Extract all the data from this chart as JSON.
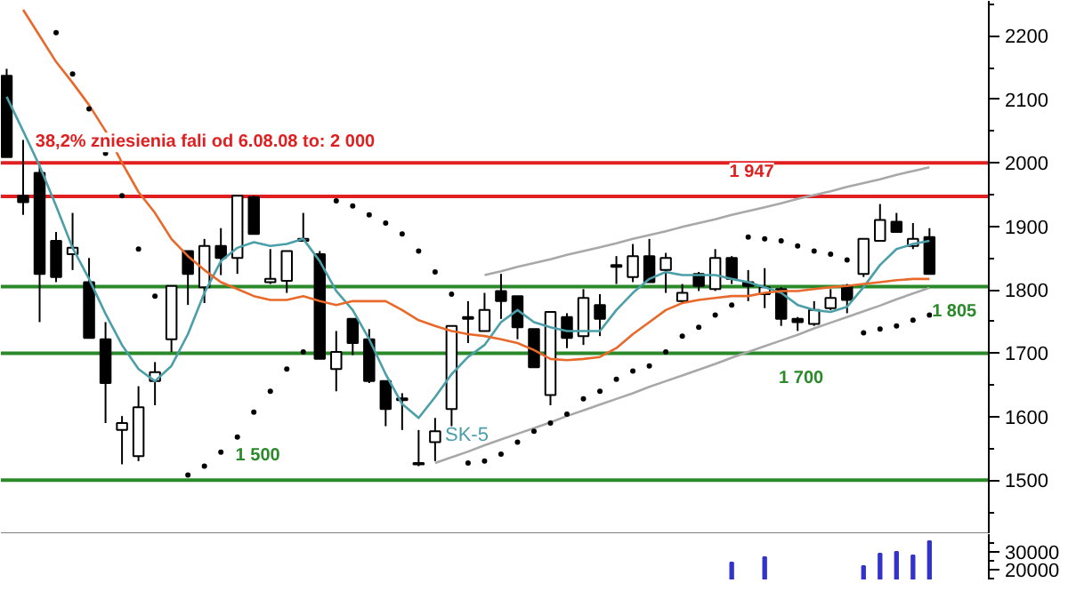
{
  "chart_data": [
    {
      "type": "candlestick",
      "color": "#000000",
      "categories": [
        null,
        null,
        null,
        null,
        null,
        null,
        null,
        null,
        null,
        null,
        null,
        null,
        null,
        null,
        null,
        null,
        null,
        null,
        null,
        null,
        null,
        null,
        null,
        null,
        null,
        null,
        null,
        null,
        null,
        null,
        null,
        null,
        null,
        null,
        null,
        null,
        null,
        null,
        null,
        null,
        null,
        null,
        null,
        null,
        null,
        null,
        null,
        null,
        null,
        null,
        null,
        null,
        null,
        null,
        null,
        null,
        null
      ],
      "ohlc": [
        [
          2137,
          2148,
          2009,
          2009
        ],
        [
          1948,
          2036,
          1918,
          1938
        ],
        [
          1984,
          1995,
          1749,
          1825
        ],
        [
          1877,
          1891,
          1812,
          1820
        ],
        [
          1856,
          1921,
          1831,
          1866
        ],
        [
          1812,
          1850,
          1724,
          1724
        ],
        [
          1722,
          1749,
          1590,
          1653
        ],
        [
          1579,
          1601,
          1525,
          1590
        ],
        [
          1538,
          1648,
          1530,
          1615
        ],
        [
          1656,
          1686,
          1618,
          1670
        ],
        [
          1722,
          1806,
          1702,
          1806
        ],
        [
          1861,
          1861,
          1776,
          1825
        ],
        [
          1804,
          1880,
          1779,
          1869
        ],
        [
          1869,
          1897,
          1823,
          1850
        ],
        [
          1850,
          1948,
          1825,
          1948
        ],
        [
          1946,
          1948,
          1888,
          1888
        ],
        [
          1812,
          1864,
          1809,
          1817
        ],
        [
          1814,
          1861,
          1795,
          1861
        ],
        [
          1877,
          1921,
          1877,
          1880
        ],
        [
          1856,
          1861,
          1691,
          1691
        ],
        [
          1675,
          1735,
          1640,
          1702
        ],
        [
          1754,
          1754,
          1697,
          1716
        ],
        [
          1722,
          1738,
          1653,
          1656
        ],
        [
          1656,
          1656,
          1585,
          1612
        ],
        [
          1626,
          1637,
          1579,
          1629
        ],
        [
          1527,
          1579,
          1522,
          1525
        ],
        [
          1560,
          1598,
          1530,
          1577
        ],
        [
          1612,
          1743,
          1585,
          1743
        ],
        [
          1754,
          1782,
          1716,
          1757
        ],
        [
          1735,
          1795,
          1735,
          1768
        ],
        [
          1798,
          1825,
          1754,
          1782
        ],
        [
          1790,
          1790,
          1722,
          1741
        ],
        [
          1738,
          1738,
          1678,
          1678
        ],
        [
          1634,
          1765,
          1618,
          1765
        ],
        [
          1757,
          1763,
          1708,
          1724
        ],
        [
          1727,
          1801,
          1713,
          1787
        ],
        [
          1776,
          1793,
          1727,
          1754
        ],
        [
          1836,
          1853,
          1809,
          1839
        ],
        [
          1820,
          1872,
          1812,
          1853
        ],
        [
          1853,
          1880,
          1812,
          1812
        ],
        [
          1831,
          1858,
          1795,
          1850
        ],
        [
          1782,
          1809,
          1779,
          1795
        ],
        [
          1825,
          1828,
          1798,
          1806
        ],
        [
          1801,
          1864,
          1798,
          1850
        ],
        [
          1850,
          1853,
          1809,
          1817
        ],
        [
          1812,
          1831,
          1782,
          1806
        ],
        [
          1793,
          1834,
          1771,
          1804
        ],
        [
          1801,
          1804,
          1743,
          1754
        ],
        [
          1754,
          1757,
          1735,
          1749
        ],
        [
          1746,
          1782,
          1743,
          1768
        ],
        [
          1771,
          1801,
          1768,
          1787
        ],
        [
          1806,
          1809,
          1763,
          1784
        ],
        [
          1825,
          1880,
          1820,
          1880
        ],
        [
          1877,
          1935,
          1877,
          1910
        ],
        [
          1907,
          1921,
          1891,
          1891
        ],
        [
          1869,
          1905,
          1864,
          1880
        ],
        [
          1883,
          1897,
          1825,
          1825
        ]
      ],
      "series": [
        {
          "type": "line",
          "name": "SK-5",
          "color": "#4a9fa8",
          "values": [
            2104,
            2050,
            1995,
            1932,
            1866,
            1817,
            1762,
            1713,
            1675,
            1656,
            1680,
            1730,
            1795,
            1845,
            1866,
            1875,
            1869,
            1872,
            1880,
            1845,
            1798,
            1768,
            1722,
            1667,
            1620,
            1598,
            1631,
            1667,
            1694,
            1713,
            1749,
            1768,
            1749,
            1741,
            1735,
            1735,
            1735,
            1768,
            1795,
            1817,
            1828,
            1823,
            1823,
            1823,
            1817,
            1812,
            1804,
            1795,
            1776,
            1768,
            1765,
            1773,
            1804,
            1839,
            1864,
            1872,
            1877
          ]
        },
        {
          "type": "line",
          "color": "#e8692a",
          "values": [
            null,
            2241,
            2200,
            2159,
            2126,
            2091,
            2050,
            2000,
            1954,
            1921,
            1880,
            1853,
            1831,
            1812,
            1801,
            1790,
            1784,
            1784,
            1790,
            1782,
            1776,
            1782,
            1782,
            1782,
            1768,
            1752,
            1743,
            1735,
            1730,
            1727,
            1722,
            1716,
            1705,
            1691,
            1689,
            1691,
            1694,
            1708,
            1730,
            1749,
            1768,
            1779,
            1784,
            1787,
            1790,
            1790,
            1795,
            1798,
            1798,
            1801,
            1804,
            1806,
            1809,
            1812,
            1815,
            1817,
            1817
          ]
        },
        {
          "type": "scatter",
          "marker": "circle",
          "color": "#000000",
          "values": [
            null,
            null,
            null,
            2205,
            2140,
            2085,
            2015,
            1948,
            1864,
            1790,
            null,
            1508,
            1522,
            1544,
            1568,
            1607,
            1640,
            1675,
            1702,
            null,
            1940,
            1932,
            1918,
            1905,
            1888,
            1861,
            1828,
            1793,
            1527,
            1530,
            1541,
            1560,
            1577,
            1590,
            1604,
            1628,
            1640,
            1659,
            1672,
            1680,
            1702,
            1727,
            1741,
            1760,
            1776,
            1883,
            1880,
            1877,
            1869,
            1861,
            1856,
            1847,
            1732,
            1738,
            1743,
            1752,
            1760
          ]
        },
        {
          "type": "line",
          "color": "#a8a8a8",
          "values": [
            null,
            null,
            null,
            null,
            null,
            null,
            null,
            null,
            null,
            null,
            null,
            null,
            null,
            null,
            null,
            null,
            null,
            null,
            null,
            null,
            null,
            null,
            null,
            null,
            null,
            null,
            1527,
            1536,
            1545,
            1555,
            1564,
            1573,
            1582,
            1591,
            1601,
            1610,
            1619,
            1628,
            1637,
            1647,
            1656,
            1665,
            1674,
            1683,
            1693,
            1702,
            1711,
            1720,
            1729,
            1739,
            1748,
            1757,
            1766,
            1775,
            1785,
            1794,
            1803
          ]
        },
        {
          "type": "line",
          "color": "#a8a8a8",
          "values": [
            null,
            null,
            null,
            null,
            null,
            null,
            null,
            null,
            null,
            null,
            null,
            null,
            null,
            null,
            null,
            null,
            null,
            null,
            null,
            null,
            null,
            null,
            null,
            null,
            null,
            null,
            null,
            null,
            null,
            1823,
            1829,
            1836,
            1842,
            1848,
            1855,
            1861,
            1867,
            1873,
            1880,
            1886,
            1892,
            1899,
            1905,
            1911,
            1918,
            1924,
            1930,
            1936,
            1943,
            1949,
            1955,
            1962,
            1968,
            1974,
            1981,
            1987,
            1993
          ]
        }
      ],
      "ref_lines": [
        {
          "axis": "y",
          "value": 2000,
          "label": "38,2%  zniesienia fali od 6.08.08 to: 2 000",
          "color": "#e02020"
        },
        {
          "axis": "y",
          "value": 1947,
          "label": "1 947",
          "color": "#e02020"
        },
        {
          "axis": "y",
          "value": 1500,
          "label": "1 500",
          "color": "#2a8a2a"
        },
        {
          "axis": "y",
          "value": 1700,
          "label": "1 700",
          "color": "#2a8a2a"
        },
        {
          "axis": "y",
          "value": 1805,
          "label": "1 805",
          "color": "#2a8a2a"
        }
      ],
      "ylim": [
        1415,
        2255
      ],
      "yticks": [
        1500,
        1600,
        1700,
        1800,
        1900,
        2000,
        2100,
        2200
      ],
      "tick_labels": "y"
    },
    {
      "type": "bar",
      "color": "#3333cc",
      "categories": [
        null,
        null,
        null,
        null,
        null,
        null,
        null,
        null,
        null,
        null,
        null,
        null,
        null,
        null,
        null,
        null,
        null,
        null,
        null,
        null,
        null,
        null,
        null,
        null,
        null,
        null,
        null,
        null,
        null,
        null,
        null,
        null,
        null,
        null,
        null,
        null,
        null,
        null,
        null,
        null,
        null,
        null,
        null,
        null,
        null,
        null,
        null,
        null,
        null,
        null,
        null,
        null,
        null,
        null,
        null,
        null,
        null
      ],
      "values": [
        null,
        null,
        null,
        null,
        null,
        null,
        null,
        null,
        null,
        null,
        null,
        null,
        null,
        null,
        null,
        null,
        null,
        null,
        null,
        null,
        null,
        null,
        null,
        null,
        null,
        null,
        null,
        null,
        null,
        null,
        null,
        null,
        null,
        null,
        null,
        null,
        null,
        null,
        null,
        null,
        null,
        null,
        null,
        null,
        24000,
        null,
        27000,
        null,
        null,
        null,
        null,
        null,
        22000,
        29000,
        30000,
        28000,
        36000
      ],
      "ylim": [
        14000,
        40000
      ],
      "yticks": [
        20000,
        30000
      ],
      "tick_labels": "y"
    }
  ]
}
